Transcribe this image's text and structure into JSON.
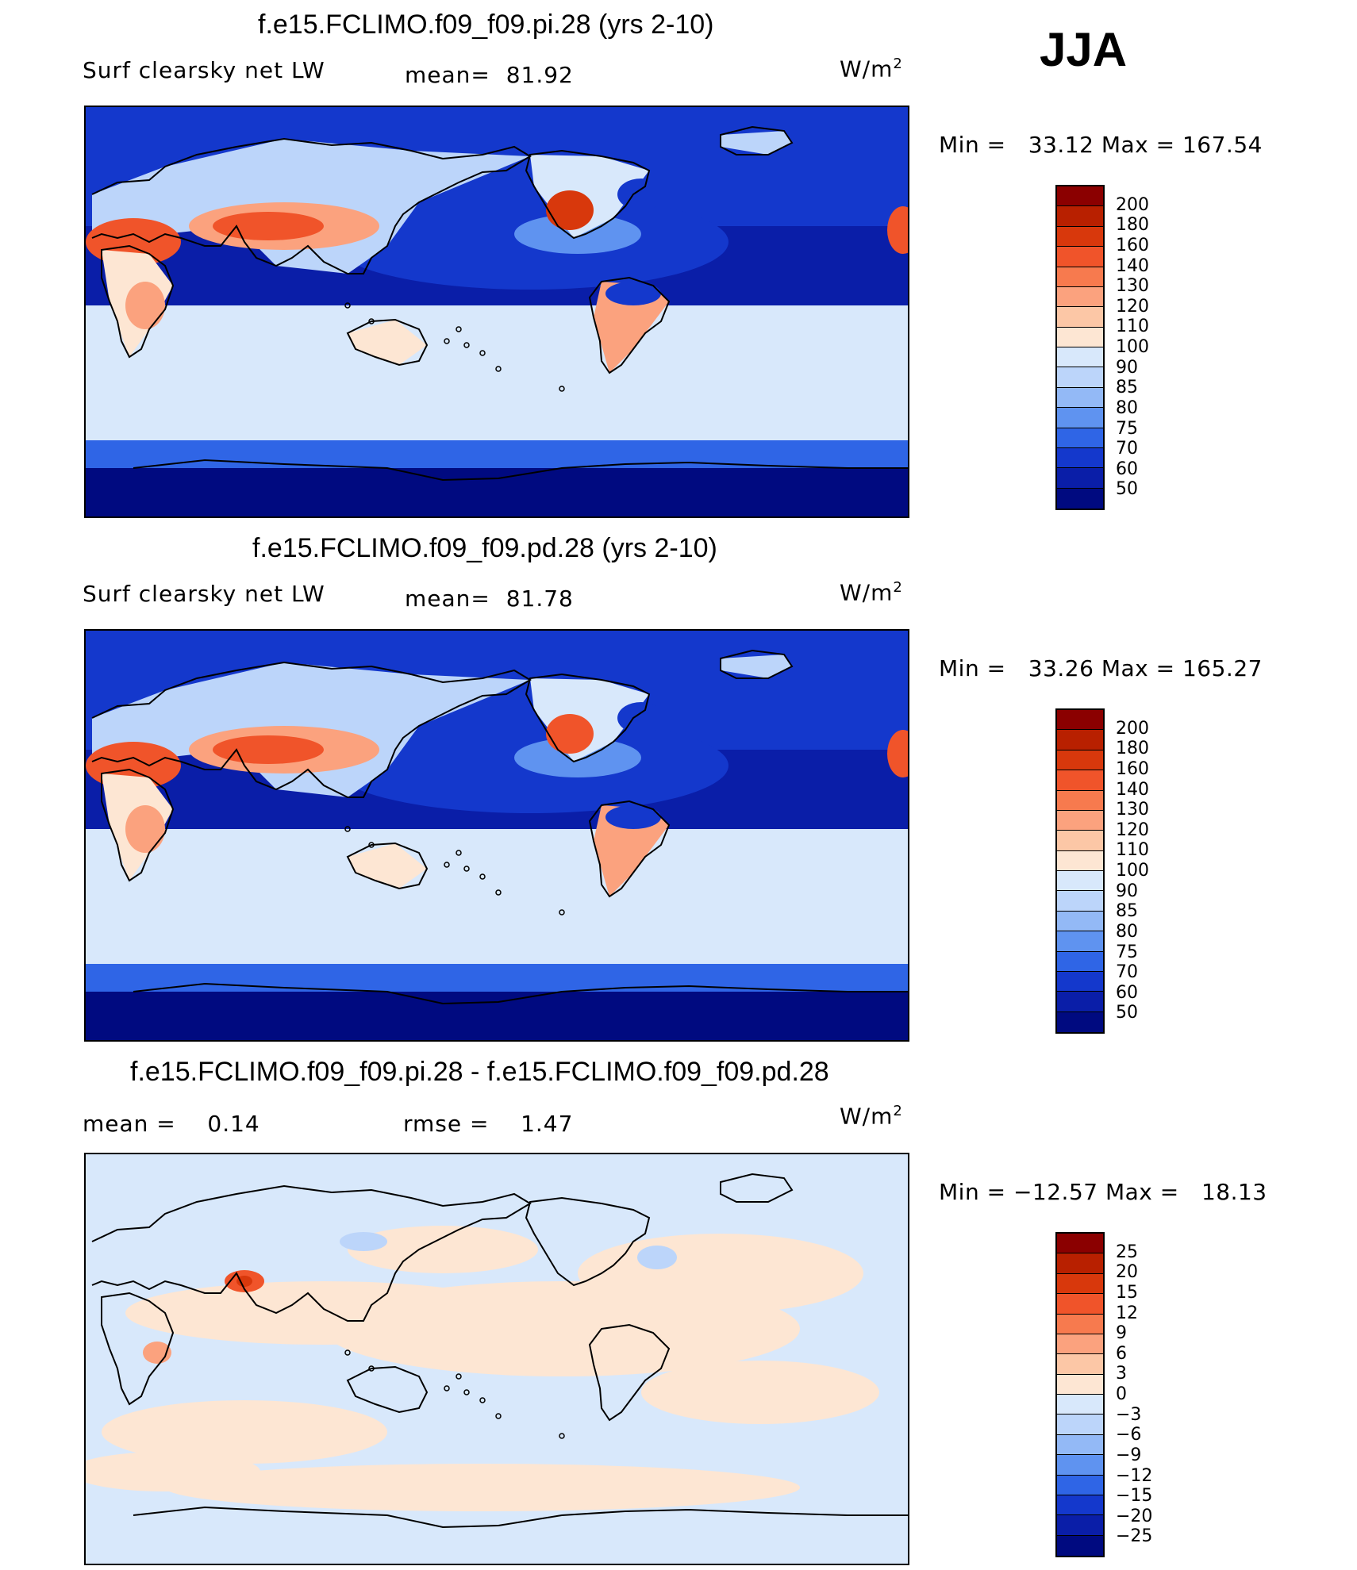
{
  "season": "JJA",
  "panels": [
    {
      "title": "f.e15.FCLIMO.f09_f09.pi.28 (yrs 2-10)",
      "variable": "Surf clearsky net LW",
      "stat_label": "mean=",
      "stat_value": "81.92",
      "units": "W/m",
      "units_sup": "2",
      "min_label": "Min  =",
      "min_value": "33.12",
      "max_label": "Max  =",
      "max_value": "167.54"
    },
    {
      "title": "f.e15.FCLIMO.f09_f09.pd.28 (yrs 2-10)",
      "variable": "Surf clearsky net LW",
      "stat_label": "mean=",
      "stat_value": "81.78",
      "units": "W/m",
      "units_sup": "2",
      "min_label": "Min  =",
      "min_value": "33.26",
      "max_label": "Max  =",
      "max_value": "165.27"
    },
    {
      "title": "f.e15.FCLIMO.f09_f09.pi.28 - f.e15.FCLIMO.f09_f09.pd.28",
      "mean_label": "mean  =",
      "mean_value": "0.14",
      "rmse_label": "rmse  =",
      "rmse_value": "1.47",
      "units": "W/m",
      "units_sup": "2",
      "min_label": "Min  =",
      "min_value": "−12.57",
      "max_label": "Max  =",
      "max_value": "18.13"
    }
  ],
  "colorbars": {
    "field": {
      "labels": [
        "200",
        "180",
        "160",
        "140",
        "130",
        "120",
        "110",
        "100",
        "90",
        "85",
        "80",
        "75",
        "70",
        "60",
        "50"
      ],
      "colors": [
        "#8b0000",
        "#b82000",
        "#d8380c",
        "#f0542a",
        "#f77a4e",
        "#fba27e",
        "#fcc7a6",
        "#fde6d3",
        "#d8e8fb",
        "#bcd5fa",
        "#93b9f6",
        "#5f93f0",
        "#2f65e6",
        "#1438cc",
        "#0a1ea8",
        "#000a80"
      ]
    },
    "diff": {
      "labels": [
        "25",
        "20",
        "15",
        "12",
        "9",
        "6",
        "3",
        "0",
        "−3",
        "−6",
        "−9",
        "−12",
        "−15",
        "−20",
        "−25"
      ],
      "colors": [
        "#8b0000",
        "#b82000",
        "#d8380c",
        "#f0542a",
        "#f77a4e",
        "#fba27e",
        "#fcc7a6",
        "#fde6d3",
        "#d8e8fb",
        "#bcd5fa",
        "#93b9f6",
        "#5f93f0",
        "#2f65e6",
        "#1438cc",
        "#0a1ea8",
        "#000a80"
      ]
    }
  },
  "map_colors": {
    "deep": "#000a80",
    "dark": "#0a1ea8",
    "blue": "#1438cc",
    "mid": "#2f65e6",
    "light": "#5f93f0",
    "pale": "#bcd5fa",
    "verypale": "#d8e8fb",
    "peach": "#fde6d3",
    "salmon": "#fba27e",
    "orange": "#f0542a",
    "red": "#d8380c"
  }
}
